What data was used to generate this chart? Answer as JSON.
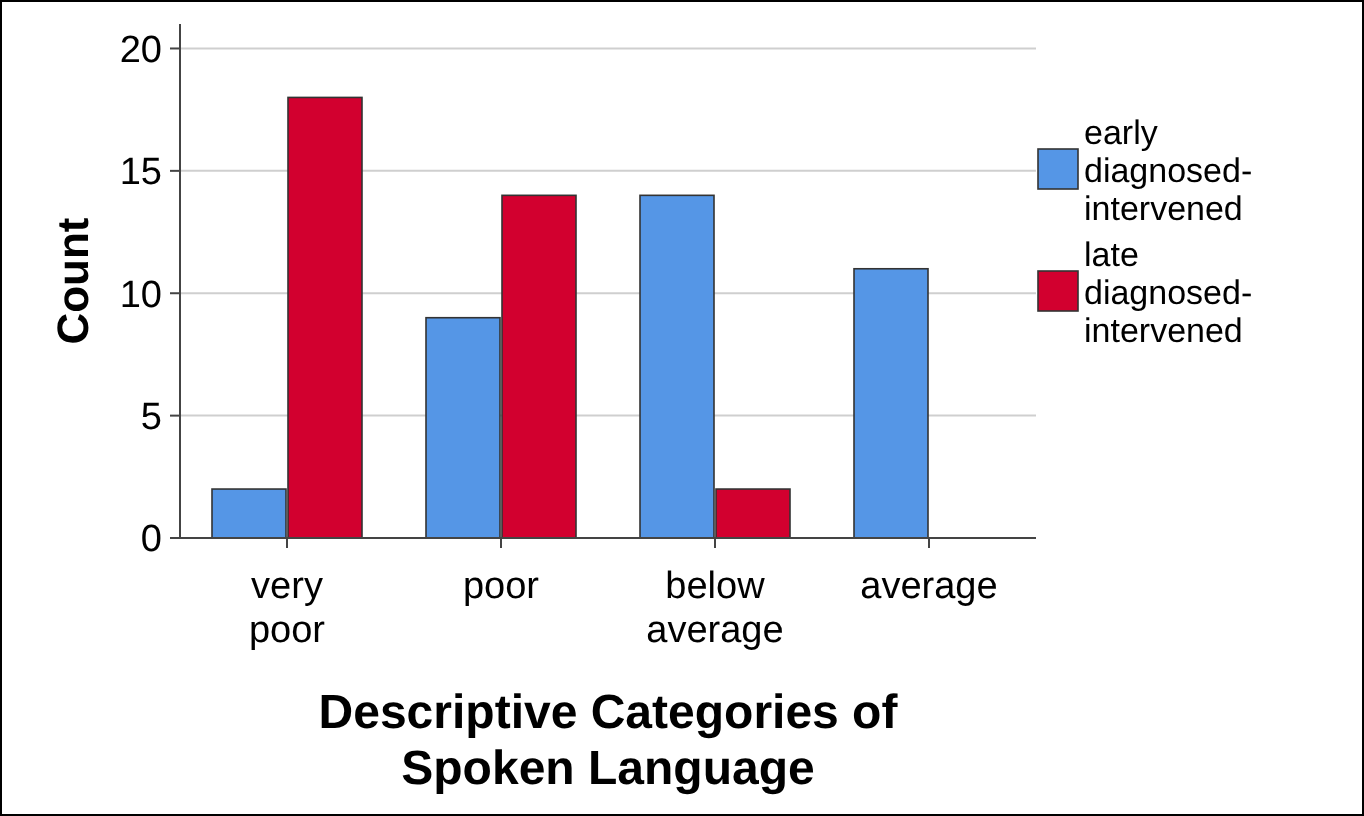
{
  "chart_data": {
    "type": "bar",
    "xlabel": "Descriptive Categories of Spoken Language",
    "ylabel": "Count",
    "categories": [
      "very poor",
      "poor",
      "below average",
      "average"
    ],
    "series": [
      {
        "name": "early diagnosed-intervened",
        "color": "#5596e6",
        "values": [
          2,
          9,
          14,
          11
        ]
      },
      {
        "name": "late diagnosed-intervened",
        "color": "#d2002f",
        "values": [
          18,
          14,
          2,
          0
        ]
      }
    ],
    "ylim": [
      0,
      21
    ],
    "yticks": [
      0,
      5,
      10,
      15,
      20
    ],
    "grid": "y",
    "legend": "right"
  }
}
